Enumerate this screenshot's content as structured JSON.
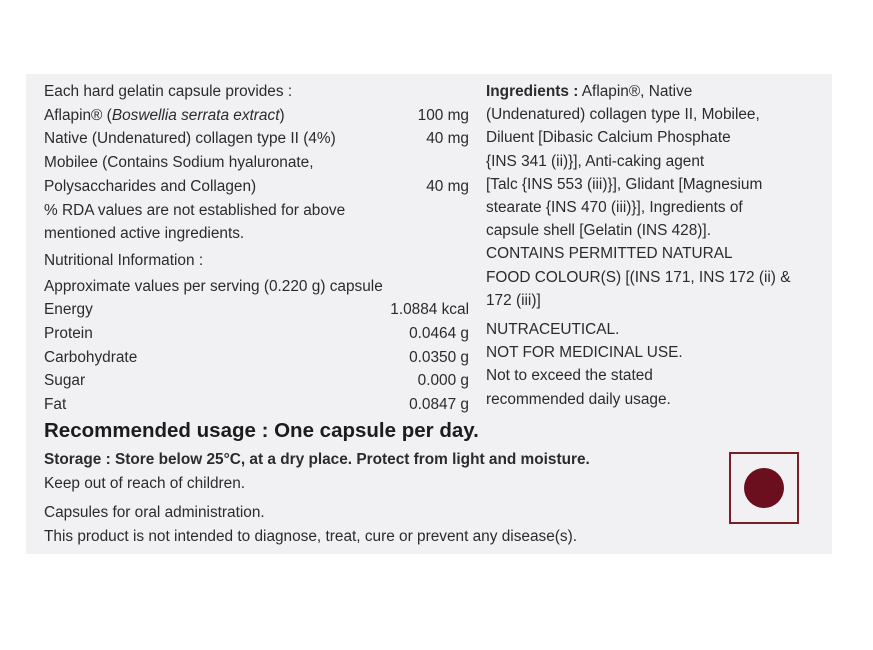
{
  "composition": {
    "heading": "Each hard gelatin capsule provides :",
    "items": [
      {
        "name_prefix": "Aflapin® (",
        "name_italic": "Boswellia serrata extract",
        "name_suffix": ")",
        "qty": "100 mg"
      },
      {
        "name": "Native (Undenatured) collagen type II (4%)",
        "qty": "40 mg"
      },
      {
        "name_line1": "Mobilee (Contains Sodium hyaluronate,",
        "name_line2": "Polysaccharides and Collagen)",
        "qty": "40 mg"
      }
    ],
    "rda_note_line1": "% RDA values are not established for above",
    "rda_note_line2": "mentioned active ingredients."
  },
  "nutrition": {
    "heading": "Nutritional Information :",
    "serving": "Approximate values per serving (0.220 g) capsule",
    "rows": [
      {
        "label": "Energy",
        "value": "1.0884 kcal"
      },
      {
        "label": "Protein",
        "value": "0.0464 g"
      },
      {
        "label": "Carbohydrate",
        "value": "0.0350 g"
      },
      {
        "label": "Sugar",
        "value": "0.000 g"
      },
      {
        "label": "Fat",
        "value": "0.0847 g"
      }
    ]
  },
  "ingredients": {
    "title": "Ingredients :",
    "lines": [
      " Aflapin®, Native",
      "(Undenatured) collagen type II, Mobilee,",
      "Diluent [Dibasic Calcium Phosphate",
      "{INS 341 (ii)}], Anti-caking agent",
      "[Talc {INS 553 (iii)}], Glidant [Magnesium",
      "stearate {INS 470 (iii)}], Ingredients of",
      "capsule shell [Gelatin (INS 428)].",
      "CONTAINS PERMITTED NATURAL",
      "FOOD COLOUR(S) [(INS 171, INS 172 (ii) &",
      "172 (iii)]"
    ],
    "notes": [
      "NUTRACEUTICAL.",
      "NOT FOR MEDICINAL USE.",
      "Not to exceed the stated",
      "recommended daily usage."
    ]
  },
  "usage": {
    "recommended": "Recommended usage : One capsule per day.",
    "storage": "Storage : Store below 25°C, at a dry place. Protect from light and moisture.",
    "keep_out": "Keep out of reach of children.",
    "oral": "Capsules for oral administration.",
    "disclaimer": "This product is not intended to diagnose, treat, cure or prevent any disease(s)."
  },
  "colors": {
    "panel": "#f1f1f3",
    "mark": "#6b0f1f",
    "text": "#2b2b2b"
  },
  "icons": {
    "non_veg_mark": "brown-dot-in-square"
  }
}
